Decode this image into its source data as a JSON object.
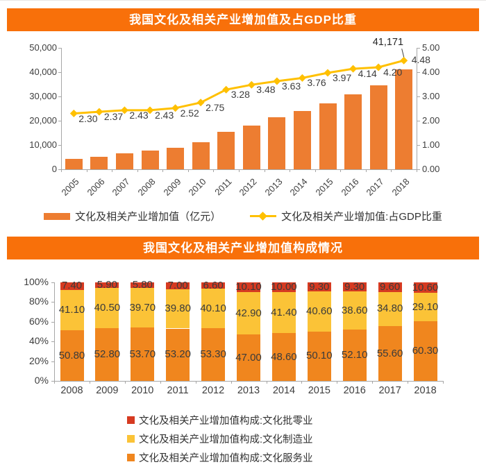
{
  "page": {
    "banner_color": "#F8700A",
    "background": "#FFFFFF",
    "axis_color": "#A6A6A6",
    "text_color": "#3D3D3D"
  },
  "chart_data": [
    {
      "type": "bar+line",
      "title": "我国文化及相关产业增加值及占GDP比重",
      "categories": [
        "2005",
        "2006",
        "2007",
        "2008",
        "2009",
        "2010",
        "2011",
        "2012",
        "2013",
        "2014",
        "2015",
        "2016",
        "2017",
        "2018"
      ],
      "series": [
        {
          "name": "文化及相关产业增加值（亿元）",
          "type": "bar",
          "axis": "left",
          "color": "#ED7D31",
          "values": [
            4253,
            5123,
            6455,
            7630,
            8786,
            11052,
            15516,
            18071,
            21351,
            23942,
            27235,
            30785,
            34722,
            41171
          ],
          "data_label": {
            "index": 13,
            "text": "41,171"
          }
        },
        {
          "name": "文化及相关产业增加值:占GDP比重",
          "type": "line",
          "axis": "right",
          "color": "#FFC000",
          "values": [
            2.3,
            2.37,
            2.43,
            2.43,
            2.52,
            2.75,
            3.28,
            3.48,
            3.63,
            3.76,
            3.97,
            4.14,
            4.2,
            4.48
          ]
        }
      ],
      "left_axis": {
        "min": 0,
        "max": 50000,
        "ticks": [
          "50,000",
          "40,000",
          "30,000",
          "20,000",
          "10,000",
          "0"
        ]
      },
      "right_axis": {
        "min": 0,
        "max": 5,
        "ticks": [
          "5.00",
          "4.00",
          "3.00",
          "2.00",
          "1.00",
          "0.00"
        ]
      },
      "grid": false,
      "legend_position": "bottom"
    },
    {
      "type": "stacked-bar-100",
      "title": "我国文化及相关产业增加值构成情况",
      "categories": [
        "2008",
        "2009",
        "2010",
        "2011",
        "2012",
        "2013",
        "2014",
        "2015",
        "2016",
        "2017",
        "2018"
      ],
      "series": [
        {
          "name": "文化及相关产业增加值构成:文化服务业",
          "color": "#F0861E",
          "values": [
            50.8,
            52.8,
            53.7,
            53.2,
            53.3,
            47.0,
            48.6,
            50.1,
            52.1,
            55.6,
            60.3
          ]
        },
        {
          "name": "文化及相关产业增加值构成:文化制造业",
          "color": "#FBC337",
          "values": [
            41.1,
            40.5,
            39.7,
            39.8,
            40.1,
            42.9,
            41.4,
            40.6,
            38.6,
            34.8,
            29.1
          ]
        },
        {
          "name": "文化及相关产业增加值构成:文化批零业",
          "color": "#D63A21",
          "values": [
            7.4,
            5.9,
            5.8,
            7.0,
            6.6,
            10.1,
            10.0,
            9.3,
            9.3,
            9.6,
            10.6
          ]
        }
      ],
      "y_axis": {
        "min": 0,
        "max": 100,
        "ticks": [
          "100%",
          "80%",
          "60%",
          "40%",
          "20%",
          "0%"
        ]
      },
      "legend": [
        {
          "label": "文化及相关产业增加值构成:文化批零业",
          "color": "#D63A21"
        },
        {
          "label": "文化及相关产业增加值构成:文化制造业",
          "color": "#FBC337"
        },
        {
          "label": "文化及相关产业增加值构成:文化服务业",
          "color": "#F0861E"
        }
      ],
      "grid": false,
      "legend_position": "bottom"
    }
  ]
}
